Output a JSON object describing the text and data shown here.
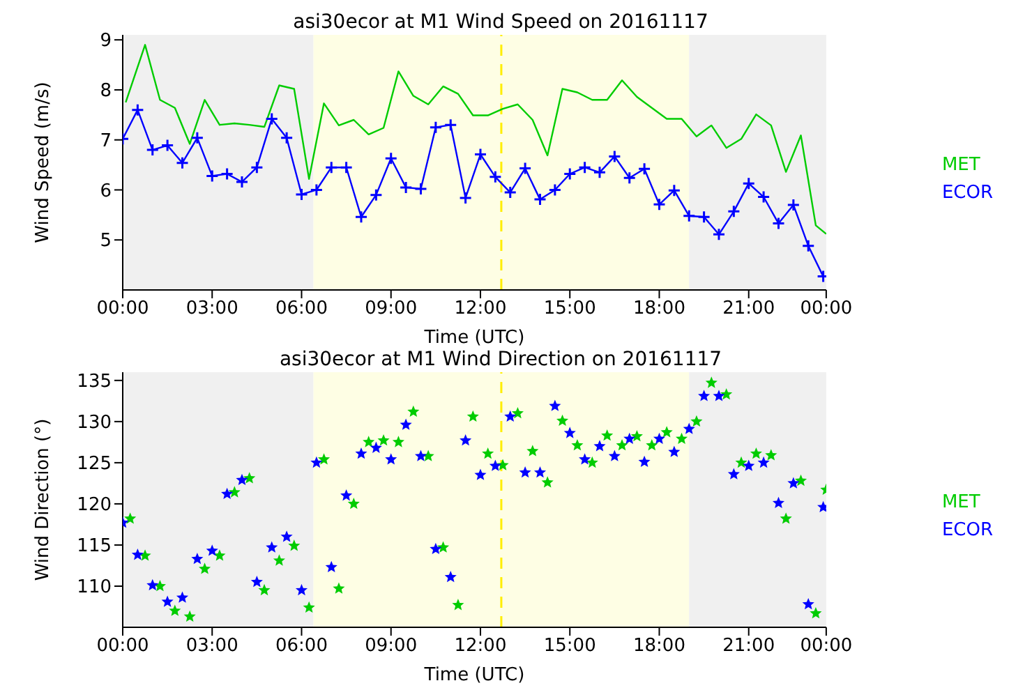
{
  "chart_data": [
    {
      "type": "line",
      "title": "asi30ecor at M1 Wind Speed on 20161117",
      "xlabel": "Time (UTC)",
      "ylabel": "Wind Speed (m/s)",
      "xlim": [
        0,
        23.6
      ],
      "xticks": [
        {
          "value": 0,
          "label": "00:00"
        },
        {
          "value": 3,
          "label": "03:00"
        },
        {
          "value": 6,
          "label": "06:00"
        },
        {
          "value": 9,
          "label": "09:00"
        },
        {
          "value": 12,
          "label": "12:00"
        },
        {
          "value": 15,
          "label": "15:00"
        },
        {
          "value": 18,
          "label": "18:00"
        },
        {
          "value": 21,
          "label": "21:00"
        },
        {
          "value": 23.6,
          "label": "00:00"
        }
      ],
      "ylim": [
        4,
        9.1
      ],
      "yticks": [
        5,
        6,
        7,
        8,
        9
      ],
      "legend": "right",
      "bands": [
        {
          "axis": "x",
          "from": 0,
          "to": 6.4,
          "color": "#f0f0f0"
        },
        {
          "axis": "x",
          "from": 6.4,
          "to": 19,
          "color": "#fefee4"
        },
        {
          "axis": "x",
          "from": 19,
          "to": 23.6,
          "color": "#f0f0f0"
        }
      ],
      "ref_lines": [
        {
          "axis": "x",
          "value": 12.7,
          "color": "#ffee00",
          "line_style": "dashed"
        }
      ],
      "series": [
        {
          "name": "MET",
          "color": "#00cc00",
          "marker": "none",
          "x": [
            0.1,
            0.75,
            1.25,
            1.75,
            2.25,
            2.75,
            3.25,
            3.75,
            4.25,
            4.75,
            5.25,
            5.75,
            6.25,
            6.75,
            7.25,
            7.75,
            8.25,
            8.75,
            9.25,
            9.75,
            10.25,
            10.75,
            11.25,
            11.75,
            12.25,
            12.75,
            13.25,
            13.75,
            14.25,
            14.75,
            15.25,
            15.75,
            16.25,
            16.75,
            17.25,
            17.75,
            18.25,
            18.75,
            19.25,
            19.75,
            20.25,
            20.75,
            21.25,
            21.75,
            22.25,
            22.75,
            23.25,
            23.6
          ],
          "values": [
            7.75,
            8.9,
            7.8,
            7.64,
            6.92,
            7.8,
            7.3,
            7.33,
            7.3,
            7.26,
            8.09,
            8.02,
            6.22,
            7.73,
            7.29,
            7.4,
            7.11,
            7.24,
            8.37,
            7.88,
            7.71,
            8.07,
            7.92,
            7.49,
            7.49,
            7.62,
            7.71,
            7.4,
            6.69,
            8.02,
            7.95,
            7.8,
            7.8,
            8.19,
            7.86,
            7.64,
            7.42,
            7.42,
            7.07,
            7.29,
            6.84,
            7.02,
            7.51,
            7.29,
            6.36,
            7.09,
            5.29,
            5.12
          ]
        },
        {
          "name": "ECOR",
          "color": "#0000ff",
          "marker": "cross",
          "x": [
            0,
            0.5,
            1,
            1.5,
            2,
            2.5,
            3,
            3.5,
            4,
            4.5,
            5,
            5.5,
            6,
            6.5,
            7,
            7.5,
            8,
            8.5,
            9,
            9.5,
            10,
            10.5,
            11,
            11.5,
            12,
            12.5,
            13,
            13.5,
            14,
            14.5,
            15,
            15.5,
            16,
            16.5,
            17,
            17.5,
            18,
            18.5,
            19,
            19.5,
            20,
            20.5,
            21,
            21.5,
            22,
            22.5,
            23,
            23.5
          ],
          "values": [
            7.02,
            7.6,
            6.8,
            6.89,
            6.54,
            7.04,
            6.28,
            6.32,
            6.16,
            6.45,
            7.42,
            7.04,
            5.91,
            6.0,
            6.45,
            6.45,
            5.46,
            5.9,
            6.63,
            6.05,
            6.02,
            7.25,
            7.3,
            5.84,
            6.71,
            6.26,
            5.95,
            6.43,
            5.81,
            6.0,
            6.32,
            6.45,
            6.35,
            6.67,
            6.24,
            6.42,
            5.71,
            5.99,
            5.48,
            5.46,
            5.11,
            5.57,
            6.13,
            5.86,
            5.33,
            5.7,
            4.88,
            4.27
          ]
        }
      ]
    },
    {
      "type": "scatter",
      "title": "asi30ecor at M1 Wind Direction on 20161117",
      "xlabel": "Time (UTC)",
      "ylabel": "Wind Direction (°)",
      "xlim": [
        0,
        23.6
      ],
      "xticks": [
        {
          "value": 0,
          "label": "00:00"
        },
        {
          "value": 3,
          "label": "03:00"
        },
        {
          "value": 6,
          "label": "06:00"
        },
        {
          "value": 9,
          "label": "09:00"
        },
        {
          "value": 12,
          "label": "12:00"
        },
        {
          "value": 15,
          "label": "15:00"
        },
        {
          "value": 18,
          "label": "18:00"
        },
        {
          "value": 21,
          "label": "21:00"
        },
        {
          "value": 23.6,
          "label": "00:00"
        }
      ],
      "ylim": [
        105,
        136
      ],
      "yticks": [
        110,
        115,
        120,
        125,
        130,
        135
      ],
      "legend": "right",
      "marker": "star",
      "bands": [
        {
          "axis": "x",
          "from": 0,
          "to": 6.4,
          "color": "#f0f0f0"
        },
        {
          "axis": "x",
          "from": 6.4,
          "to": 19,
          "color": "#fefee4"
        },
        {
          "axis": "x",
          "from": 19,
          "to": 23.6,
          "color": "#f0f0f0"
        }
      ],
      "ref_lines": [
        {
          "axis": "x",
          "value": 12.7,
          "color": "#ffee00",
          "line_style": "dashed"
        }
      ],
      "series": [
        {
          "name": "MET",
          "color": "#00cc00",
          "x": [
            0.25,
            0.75,
            1.25,
            1.75,
            2.25,
            2.75,
            3.25,
            3.75,
            4.25,
            4.75,
            5.25,
            5.75,
            6.25,
            6.75,
            7.25,
            7.75,
            8.25,
            8.75,
            9.25,
            9.75,
            10.25,
            10.75,
            11.25,
            11.75,
            12.25,
            12.75,
            13.25,
            13.75,
            14.25,
            14.75,
            15.25,
            15.75,
            16.25,
            16.75,
            17.25,
            17.75,
            18.25,
            18.75,
            19.25,
            19.75,
            20.25,
            20.75,
            21.25,
            21.75,
            22.25,
            22.75,
            23.25,
            23.6
          ],
          "values": [
            118.2,
            113.7,
            110.0,
            107.0,
            106.3,
            112.1,
            113.7,
            121.4,
            123.1,
            109.5,
            113.1,
            114.9,
            107.4,
            125.4,
            109.7,
            120.0,
            127.5,
            127.7,
            127.5,
            131.2,
            125.8,
            114.7,
            107.7,
            130.6,
            126.1,
            124.7,
            131.0,
            126.4,
            122.6,
            130.1,
            127.1,
            125.0,
            128.3,
            127.1,
            128.2,
            127.1,
            128.7,
            127.9,
            130.0,
            134.7,
            133.3,
            125.0,
            126.1,
            125.9,
            118.2,
            122.8,
            106.7,
            121.7
          ]
        },
        {
          "name": "ECOR",
          "color": "#0000ff",
          "x": [
            0,
            0.5,
            1,
            1.5,
            2,
            2.5,
            3,
            3.5,
            4,
            4.5,
            5,
            5.5,
            6,
            6.5,
            7,
            7.5,
            8,
            8.5,
            9,
            9.5,
            10,
            10.5,
            11,
            11.5,
            12,
            12.5,
            13,
            13.5,
            14,
            14.5,
            15,
            15.5,
            16,
            16.5,
            17,
            17.5,
            18,
            18.5,
            19,
            19.5,
            20,
            20.5,
            21,
            21.5,
            22,
            22.5,
            23,
            23.5
          ],
          "values": [
            117.7,
            113.8,
            110.1,
            108.1,
            108.6,
            113.3,
            114.3,
            121.2,
            122.9,
            110.5,
            114.7,
            116.0,
            109.5,
            125.0,
            112.3,
            121.0,
            126.1,
            126.8,
            125.4,
            129.6,
            125.8,
            114.5,
            111.1,
            127.7,
            123.5,
            124.6,
            130.6,
            123.8,
            123.8,
            131.9,
            128.6,
            125.4,
            127.0,
            125.8,
            127.9,
            125.1,
            127.9,
            126.3,
            129.1,
            133.1,
            133.1,
            123.6,
            124.6,
            125.0,
            120.1,
            122.5,
            107.8,
            119.6
          ]
        }
      ]
    }
  ]
}
